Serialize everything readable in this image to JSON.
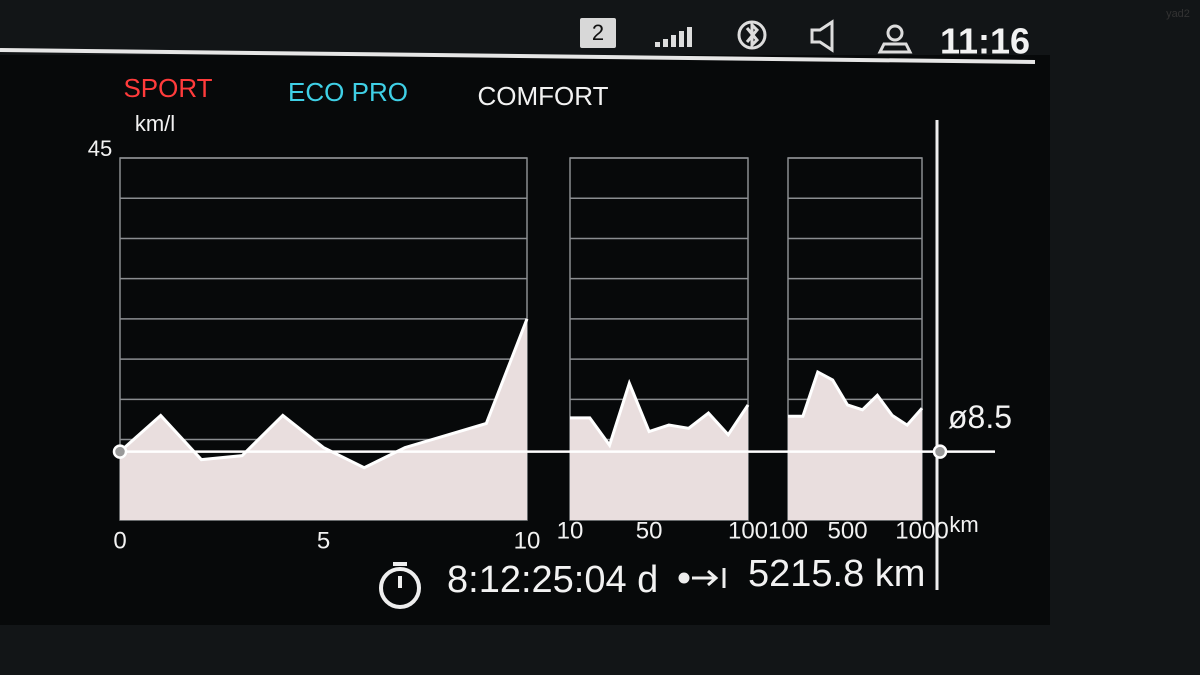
{
  "status_bar": {
    "badge": "2",
    "time": "11:16"
  },
  "modes": [
    "SPORT",
    "ECO PRO",
    "COMFORT"
  ],
  "chart_data": [
    {
      "type": "area",
      "y_label": "km/l",
      "x": [
        0,
        1,
        2,
        3,
        4,
        5,
        6,
        7,
        8,
        9,
        10
      ],
      "values": [
        8.5,
        13,
        7.5,
        8,
        13,
        9,
        6.5,
        9,
        10.5,
        12,
        25
      ],
      "xlim": [
        0,
        10
      ],
      "xticks": [
        0,
        5,
        10
      ],
      "ylim": [
        0,
        45
      ],
      "yticks": [
        {
          "value": 5,
          "label": null
        },
        {
          "value": 10,
          "label": null
        },
        {
          "value": 15,
          "label": null
        },
        {
          "value": 20,
          "label": null
        },
        {
          "value": 25,
          "label": null
        },
        {
          "value": 30,
          "label": null
        },
        {
          "value": 35,
          "label": null
        },
        {
          "value": 40,
          "label": null
        },
        45
      ],
      "color": "#e9dede"
    },
    {
      "type": "area",
      "categories": [
        "10",
        null,
        null,
        null,
        "50",
        null,
        null,
        null,
        null,
        "100"
      ],
      "values": [
        12.7,
        12.7,
        9.3,
        17,
        11,
        11.8,
        11.4,
        13.3,
        10.6,
        14.3
      ],
      "ylim": [
        0,
        45
      ],
      "yticks": [
        {
          "value": 5,
          "label": null
        },
        {
          "value": 10,
          "label": null
        },
        {
          "value": 15,
          "label": null
        },
        {
          "value": 20,
          "label": null
        },
        {
          "value": 25,
          "label": null
        },
        {
          "value": 30,
          "label": null
        },
        {
          "value": 35,
          "label": null
        },
        {
          "value": 40,
          "label": null
        },
        {
          "value": 45,
          "label": null
        }
      ],
      "color": "#e9dede"
    },
    {
      "type": "area",
      "x_label": "km",
      "categories": [
        "100",
        null,
        null,
        null,
        "500",
        null,
        null,
        null,
        null,
        "1000"
      ],
      "values": [
        12.9,
        12.9,
        18.4,
        17.4,
        14.3,
        13.7,
        15.5,
        13,
        11.8,
        13.9
      ],
      "ylim": [
        0,
        45
      ],
      "yticks": [
        {
          "value": 5,
          "label": null
        },
        {
          "value": 10,
          "label": null
        },
        {
          "value": 15,
          "label": null
        },
        {
          "value": 20,
          "label": null
        },
        {
          "value": 25,
          "label": null
        },
        {
          "value": 30,
          "label": null
        },
        {
          "value": 35,
          "label": null
        },
        {
          "value": 40,
          "label": null
        },
        {
          "value": 45,
          "label": null
        }
      ],
      "color": "#e9dede"
    }
  ],
  "average": {
    "value": 8.5,
    "label": "ø8.5"
  },
  "footer": {
    "duration": "8:12:25:04 d",
    "distance": "5215.8 km"
  },
  "watermark": "yad2"
}
